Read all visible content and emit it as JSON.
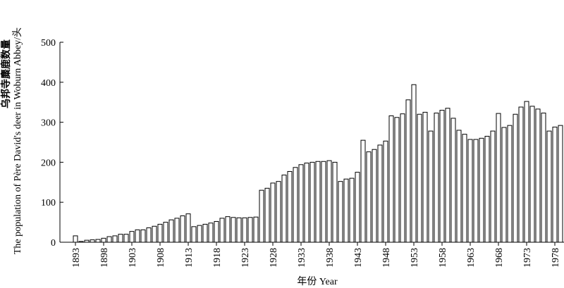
{
  "chart_data": {
    "type": "bar",
    "xlabel": "年份 Year",
    "ylabel_cn": "乌邦寺麋鹿数量",
    "ylabel": "The population of Père David's deer in Woburn Abbey/头",
    "categories": [
      "1893",
      null,
      null,
      null,
      null,
      "1898",
      null,
      null,
      null,
      null,
      "1903",
      null,
      null,
      null,
      null,
      "1908",
      null,
      null,
      null,
      null,
      "1913",
      null,
      null,
      null,
      null,
      "1918",
      null,
      null,
      null,
      null,
      "1923",
      null,
      null,
      null,
      null,
      "1928",
      null,
      null,
      null,
      null,
      "1933",
      null,
      null,
      null,
      null,
      "1938",
      null,
      null,
      null,
      null,
      "1943",
      null,
      null,
      null,
      null,
      "1948",
      null,
      null,
      null,
      null,
      "1953",
      null,
      null,
      null,
      null,
      "1958",
      null,
      null,
      null,
      null,
      "1963",
      null,
      null,
      null,
      null,
      "1968",
      null,
      null,
      null,
      null,
      "1973",
      null,
      null,
      null,
      null,
      "1978",
      null
    ],
    "values": [
      16,
      2,
      5,
      6,
      7,
      10,
      14,
      16,
      20,
      20,
      27,
      31,
      31,
      36,
      40,
      45,
      50,
      56,
      60,
      66,
      71,
      39,
      42,
      45,
      48,
      52,
      60,
      64,
      62,
      61,
      61,
      62,
      63,
      130,
      135,
      148,
      152,
      168,
      177,
      187,
      194,
      198,
      200,
      202,
      202,
      204,
      200,
      152,
      158,
      160,
      175,
      255,
      226,
      232,
      243,
      253,
      316,
      312,
      321,
      356,
      394,
      320,
      325,
      278,
      323,
      330,
      335,
      310,
      280,
      270,
      257,
      257,
      260,
      265,
      278,
      322,
      287,
      292,
      320,
      338,
      352,
      340,
      333,
      323,
      278,
      288,
      292
    ],
    "color": "#ffffff",
    "edge_color": "#000000",
    "ylim": [
      0,
      500
    ],
    "yticks": [
      0,
      100,
      200,
      300,
      400,
      500
    ],
    "grid": false
  }
}
